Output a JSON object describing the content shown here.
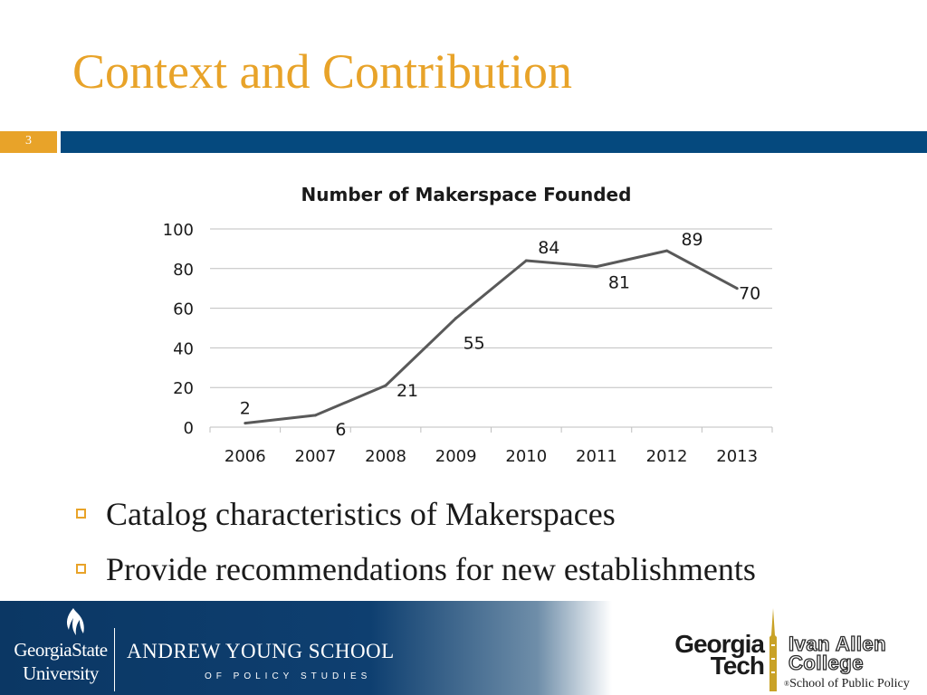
{
  "slide": {
    "title": "Context and Contribution",
    "number": "3"
  },
  "colors": {
    "title": "#E8A329",
    "rule_orange": "#E8A329",
    "rule_blue": "#05497E",
    "series_line": "#595959",
    "gridline": "#bfbfbf",
    "footer_blue": "#0e3f70"
  },
  "chart_data": {
    "type": "line",
    "title": "Number of Makerspace Founded",
    "categories": [
      "2006",
      "2007",
      "2008",
      "2009",
      "2010",
      "2011",
      "2012",
      "2013"
    ],
    "values": [
      2,
      6,
      21,
      55,
      84,
      81,
      89,
      70
    ],
    "data_labels": [
      "2",
      "6",
      "21",
      "55",
      "84",
      "81",
      "89",
      "70"
    ],
    "xlabel": "",
    "ylabel": "",
    "ylim": [
      0,
      100
    ],
    "yticks": [
      0,
      20,
      40,
      60,
      80,
      100
    ],
    "ytick_labels": [
      "0",
      "20",
      "40",
      "60",
      "80",
      "100"
    ],
    "grid": true,
    "legend": "none"
  },
  "bullets": [
    "Catalog characteristics of Makerspaces",
    "Provide recommendations for new establishments"
  ],
  "bullet_icon": "hollow-square",
  "footer": {
    "gsu_name": [
      "GeorgiaState",
      "University"
    ],
    "gsu_flame_icon": "flame-logo-icon",
    "ays_title": "ANDREW YOUNG SCHOOL",
    "ays_subtitle": "OF POLICY STUDIES",
    "gt_name": [
      "Georgia",
      "Tech"
    ],
    "tower_icon": "tech-tower-icon",
    "iac_name": [
      "Ivan Allen",
      "College"
    ],
    "spp_mark": "®",
    "spp_text": "School of Public Policy"
  }
}
